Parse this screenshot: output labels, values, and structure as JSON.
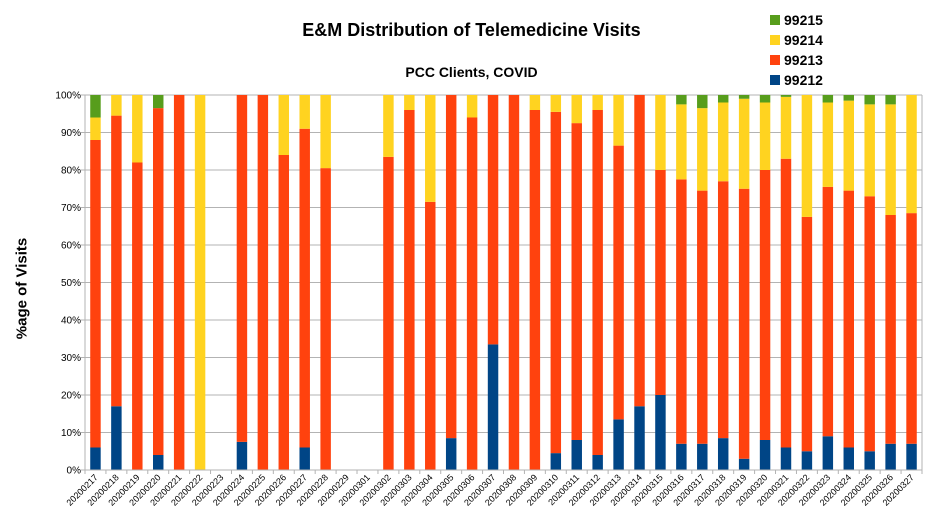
{
  "chart_data": {
    "type": "bar",
    "stacked": true,
    "title": "E&M Distribution of Telemedicine Visits",
    "subtitle": "PCC Clients, COVID",
    "xlabel": "",
    "ylabel": "%age of Visits",
    "ylim": [
      0,
      100
    ],
    "y_ticks": [
      "0%",
      "10%",
      "20%",
      "30%",
      "40%",
      "50%",
      "60%",
      "70%",
      "80%",
      "90%",
      "100%"
    ],
    "grid": true,
    "legend_position": "top-right",
    "categories": [
      "20200217",
      "20200218",
      "20200219",
      "20200220",
      "20200221",
      "20200222",
      "20200223",
      "20200224",
      "20200225",
      "20200226",
      "20200227",
      "20200228",
      "20200229",
      "20200301",
      "20200302",
      "20200303",
      "20200304",
      "20200305",
      "20200306",
      "20200307",
      "20200308",
      "20200309",
      "20200310",
      "20200311",
      "20200312",
      "20200313",
      "20200314",
      "20200315",
      "20200316",
      "20200317",
      "20200318",
      "20200319",
      "20200320",
      "20200321",
      "20200322",
      "20200323",
      "20200324",
      "20200325",
      "20200326",
      "20200327"
    ],
    "series": [
      {
        "name": "99212",
        "color": "#004586",
        "values": [
          6,
          17,
          0,
          4,
          0,
          0,
          0,
          7.5,
          0,
          0,
          6,
          0,
          0,
          0,
          0,
          0,
          0,
          8.5,
          0,
          33.5,
          0,
          0,
          4.5,
          8,
          4,
          13.5,
          17,
          20,
          7,
          7,
          8.5,
          3,
          8,
          6,
          5,
          9,
          6,
          5,
          7,
          7
        ]
      },
      {
        "name": "99213",
        "color": "#ff420e",
        "values": [
          82,
          77.5,
          82,
          92.5,
          100,
          0,
          0,
          92.5,
          100,
          84,
          85,
          80.5,
          0,
          0,
          83.5,
          96,
          71.5,
          91.5,
          94,
          66.5,
          100,
          96,
          91,
          84.5,
          92,
          73,
          83,
          60,
          70.5,
          67.5,
          68.5,
          72,
          72,
          77,
          62.5,
          66.5,
          68.5,
          68,
          61,
          61.5
        ]
      },
      {
        "name": "99214",
        "color": "#ffd320",
        "values": [
          6,
          5.5,
          18,
          0,
          0,
          100,
          0,
          0,
          0,
          16,
          9,
          19.5,
          0,
          0,
          16.5,
          4,
          28.5,
          0,
          6,
          0,
          0,
          4,
          4.5,
          7.5,
          4,
          13.5,
          0,
          20,
          20,
          22,
          21,
          24,
          18,
          16.5,
          32.5,
          22.5,
          24,
          24.5,
          29.5,
          31.5
        ]
      },
      {
        "name": "99215",
        "color": "#579d1c",
        "values": [
          6,
          0,
          0,
          3.5,
          0,
          0,
          0,
          0,
          0,
          0,
          0,
          0,
          0,
          0,
          0,
          0,
          0,
          0,
          0,
          0,
          0,
          0,
          0,
          0,
          0,
          0,
          0,
          0,
          2.5,
          3.5,
          2,
          1,
          2,
          0.5,
          0,
          2,
          1.5,
          2.5,
          2.5,
          0
        ]
      }
    ]
  }
}
